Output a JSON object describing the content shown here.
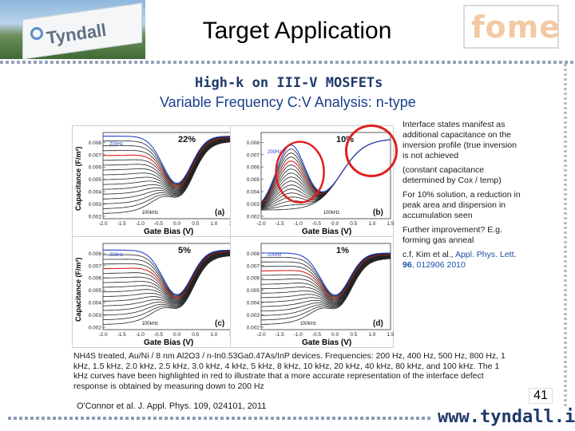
{
  "header": {
    "title": "Target Application",
    "left_logo_text": "Tyndall",
    "right_logo_text": "fome",
    "subtitle": "High-k on III-V MOSFETs"
  },
  "slide": {
    "heading": "Variable Frequency C:V Analysis: n-type",
    "panels": [
      {
        "percent": "22%",
        "letter": "(a)",
        "high_freq": "200Hz",
        "low_freq": "100kHz",
        "y_label": "Capacitance (F/m²)",
        "x_label": "Gate Bias (V)"
      },
      {
        "percent": "10%",
        "letter": "(b)",
        "high_freq": "200Hz",
        "low_freq": "100kHz",
        "y_label": "",
        "x_label": "Gate Bias (V)"
      },
      {
        "percent": "5%",
        "letter": "(c)",
        "high_freq": "200Hz",
        "low_freq": "100kHz",
        "y_label": "Capacitance (F/m²)",
        "x_label": "Gate Bias (V)"
      },
      {
        "percent": "1%",
        "letter": "(d)",
        "high_freq": "200Hz",
        "low_freq": "100kHz",
        "y_label": "",
        "x_label": "Gate Bias (V)"
      }
    ],
    "y_ticks": [
      "0.008",
      "0.007",
      "0.006",
      "0.005",
      "0.004",
      "0.003",
      "0.002"
    ],
    "x_ticks": [
      "-2.0",
      "-1.5",
      "-1.0",
      "-0.5",
      "0.0",
      "0.5",
      "1.0",
      "1.5"
    ],
    "notes": [
      "Interface states manifest as additional capacitance on the inversion profile (true inversion is not achieved",
      "(constant capacitance determined by Cox / temp)",
      "For 10% solution, a reduction in peak area and dispersion in accumulation seen",
      "Further improvement? E.g. forming gas anneal"
    ],
    "ref_prefix": "c.f. Kim et al., ",
    "ref_journal": "Appl. Phys. Lett.",
    "ref_volume": " 96",
    "ref_rest": ", 012906 2010",
    "caption": "NH4S treated, Au/Ni / 8 nm Al2O3 / n-In0.53Ga0.47As/InP devices. Frequencies: 200 Hz, 400 Hz, 500 Hz, 800 Hz, 1 kHz, 1.5 kHz, 2.0 kHz, 2.5 kHz, 3.0 kHz, 4 kHz, 5 kHz, 8 kHz, 10 kHz, 20 kHz, 40 kHz, 80 kHz, and 100 kHz. The 1 kHz curves have been highlighted in red to illustrate that a more accurate representation of the interface defect response is obtained by measuring down to 200 Hz",
    "citation": "O'Connor et al. J. Appl. Phys. 109, 024101, 2011",
    "page_number": "41"
  },
  "footer": {
    "url": "www.tyndall.ie"
  },
  "colors": {
    "title_blue": "#1b3f8a",
    "highlight_red": "#e02020",
    "curve_blue": "#2244cc"
  }
}
